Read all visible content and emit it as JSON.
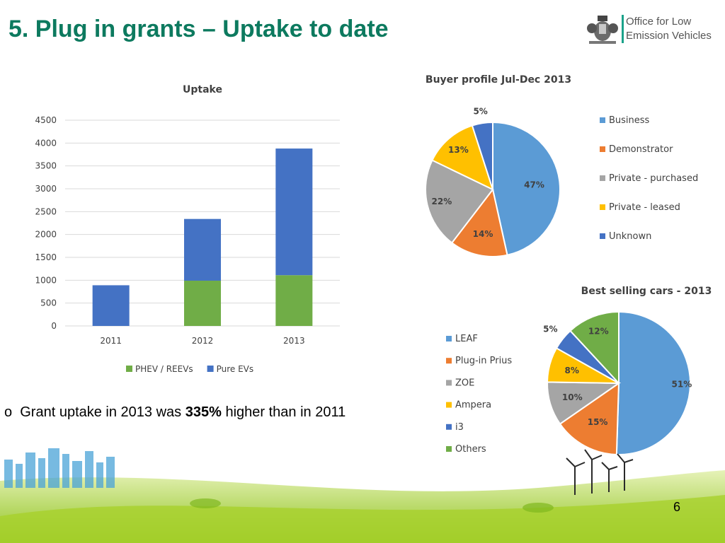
{
  "slide": {
    "title": "5. Plug in grants – Uptake to date",
    "page_number": "6",
    "bullet_marker": "o",
    "bullet": {
      "prefix": "Grant uptake in 2013 was ",
      "highlight": "335%",
      "suffix": " higher than in 2011"
    }
  },
  "logo": {
    "line1": "Office for Low",
    "line2": "Emission Vehicles",
    "icon": "royal-coat-of-arms-icon"
  },
  "colors": {
    "title": "#0d7a5f",
    "blue": "#4472c4",
    "green": "#70ad47",
    "light_blue": "#5b9bd5",
    "orange": "#ed7d31",
    "gray": "#a5a5a5",
    "yellow": "#ffc000"
  },
  "chart_data": [
    {
      "type": "bar",
      "stacked": true,
      "title": "Uptake",
      "categories": [
        "2011",
        "2012",
        "2013"
      ],
      "series": [
        {
          "name": "PHEV / REEVs",
          "color": "#70ad47",
          "values": [
            0,
            990,
            1110
          ]
        },
        {
          "name": "Pure EVs",
          "color": "#4472c4",
          "values": [
            890,
            1350,
            2770
          ]
        }
      ],
      "ylim": [
        0,
        4500
      ],
      "yticks": [
        "0",
        "500",
        "1000",
        "1500",
        "2000",
        "2500",
        "3000",
        "3500",
        "4000",
        "4500"
      ],
      "grid": true,
      "legend": "bottom"
    },
    {
      "type": "pie",
      "title": "Buyer profile Jul-Dec 2013",
      "labels": [
        "Business",
        "Demonstrator",
        "Private - purchased",
        "Private - leased",
        "Unknown"
      ],
      "values": [
        47,
        14,
        22,
        13,
        5
      ],
      "value_labels": [
        "47%",
        "14%",
        "22%",
        "13%",
        "5%"
      ],
      "colors": [
        "#5b9bd5",
        "#ed7d31",
        "#a5a5a5",
        "#ffc000",
        "#4472c4"
      ],
      "legend": "right"
    },
    {
      "type": "pie",
      "title": "Best selling cars - 2013",
      "labels": [
        "LEAF",
        "Plug-in Prius",
        "ZOE",
        "Ampera",
        "i3",
        "Others"
      ],
      "values": [
        51,
        15,
        10,
        8,
        5,
        12
      ],
      "value_labels": [
        "51%",
        "15%",
        "10%",
        "8%",
        "5%",
        "12%"
      ],
      "colors": [
        "#5b9bd5",
        "#ed7d31",
        "#a5a5a5",
        "#ffc000",
        "#4472c4",
        "#70ad47"
      ],
      "legend": "left"
    }
  ]
}
